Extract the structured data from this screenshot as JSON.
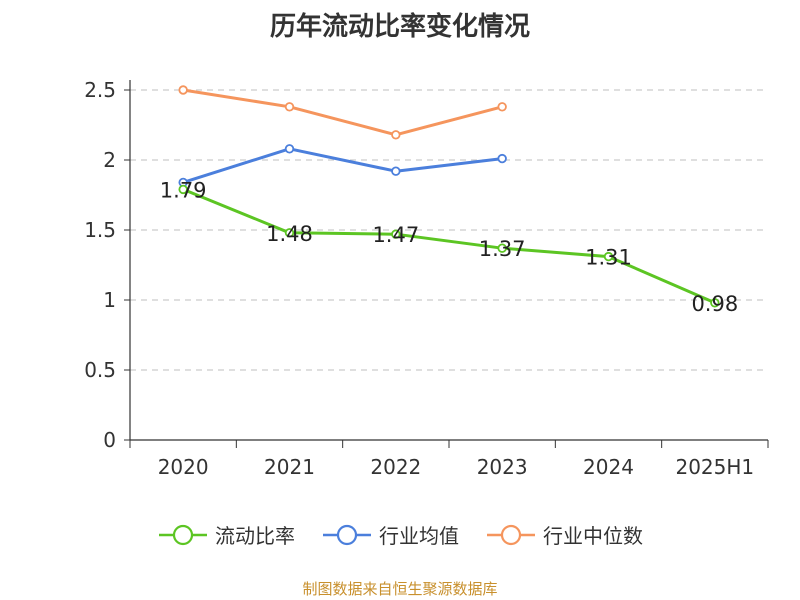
{
  "chart_data": {
    "type": "line",
    "title": "历年流动比率变化情况",
    "categories": [
      "2020",
      "2021",
      "2022",
      "2023",
      "2024",
      "2025H1"
    ],
    "ylim": [
      0,
      2.5
    ],
    "yticks": [
      "0",
      "0.5",
      "1",
      "1.5",
      "2",
      "2.5"
    ],
    "grid": true,
    "legend_position": "bottom",
    "series": [
      {
        "name": "流动比率",
        "color": "#5cc523",
        "values": [
          1.79,
          1.48,
          1.47,
          1.37,
          1.31,
          0.98
        ],
        "labels": [
          "1.79",
          "1.48",
          "1.47",
          "1.37",
          "1.31",
          "0.98"
        ]
      },
      {
        "name": "行业均值",
        "color": "#4b7fdc",
        "values": [
          1.84,
          2.08,
          1.92,
          2.01,
          null,
          null
        ]
      },
      {
        "name": "行业中位数",
        "color": "#f5955d",
        "values": [
          2.5,
          2.38,
          2.18,
          2.38,
          null,
          null
        ]
      }
    ]
  },
  "footer": {
    "source": "制图数据来自恒生聚源数据库"
  }
}
